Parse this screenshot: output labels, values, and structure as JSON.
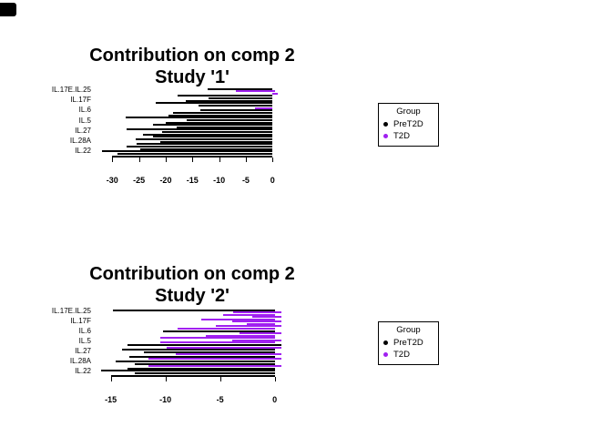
{
  "legend": {
    "title": "Group",
    "items": [
      {
        "label": "PreT2D",
        "color": "#000000"
      },
      {
        "label": "T2D",
        "color": "#A020F0"
      }
    ]
  },
  "chart_data": [
    {
      "type": "bar",
      "orientation": "horizontal",
      "title": "Contribution on comp 2",
      "subtitle": "Study '1'",
      "ylabels": [
        "IL.17E.IL.25",
        "IL.17F",
        "IL.6",
        "IL.5",
        "IL.27",
        "IL.28A",
        "IL.22"
      ],
      "xticks": [
        -30,
        -25,
        -20,
        -15,
        -10,
        -5,
        0
      ],
      "xlim": [
        -32.5,
        1.5
      ],
      "grid": false,
      "legend_position": "right",
      "groups": {
        "PreT2D": "#000000",
        "T2D": "#A020F0"
      },
      "bars": [
        {
          "from": -12.2,
          "to": 0,
          "group": "PreT2D"
        },
        {
          "from": -6.8,
          "to": 0.5,
          "group": "T2D"
        },
        {
          "from": 0,
          "to": 0.9,
          "group": "T2D"
        },
        {
          "from": -17.7,
          "to": 0,
          "group": "PreT2D"
        },
        {
          "from": -12.0,
          "to": 0,
          "group": "PreT2D"
        },
        {
          "from": -16.2,
          "to": 0,
          "group": "PreT2D"
        },
        {
          "from": -21.8,
          "to": 0,
          "group": "PreT2D"
        },
        {
          "from": -13.8,
          "to": 0,
          "group": "PreT2D"
        },
        {
          "from": -3.3,
          "to": 0,
          "group": "T2D"
        },
        {
          "from": -13.5,
          "to": 0,
          "group": "PreT2D"
        },
        {
          "from": -18.6,
          "to": 0,
          "group": "PreT2D"
        },
        {
          "from": -19.4,
          "to": 0,
          "group": "PreT2D"
        },
        {
          "from": -27.5,
          "to": 0,
          "group": "PreT2D"
        },
        {
          "from": -16.0,
          "to": 0,
          "group": "PreT2D"
        },
        {
          "from": -20.0,
          "to": 0,
          "group": "PreT2D"
        },
        {
          "from": -22.3,
          "to": 0,
          "group": "PreT2D"
        },
        {
          "from": -18.0,
          "to": 0,
          "group": "PreT2D"
        },
        {
          "from": -27.4,
          "to": 0,
          "group": "PreT2D"
        },
        {
          "from": -20.6,
          "to": 0,
          "group": "PreT2D"
        },
        {
          "from": -24.3,
          "to": 0,
          "group": "PreT2D"
        },
        {
          "from": -22.3,
          "to": 0,
          "group": "PreT2D"
        },
        {
          "from": -25.7,
          "to": 0,
          "group": "PreT2D"
        },
        {
          "from": -21.1,
          "to": 0,
          "group": "PreT2D"
        },
        {
          "from": -25.4,
          "to": 0,
          "group": "PreT2D"
        },
        {
          "from": -27.4,
          "to": 0,
          "group": "PreT2D"
        },
        {
          "from": -24.8,
          "to": 0,
          "group": "PreT2D"
        },
        {
          "from": -31.9,
          "to": 0,
          "group": "PreT2D"
        },
        {
          "from": -29.1,
          "to": 0,
          "group": "PreT2D"
        }
      ]
    },
    {
      "type": "bar",
      "orientation": "horizontal",
      "title": "Contribution on comp 2",
      "subtitle": "Study '2'",
      "ylabels": [
        "IL.17E.IL.25",
        "IL.17F",
        "IL.6",
        "IL.5",
        "IL.27",
        "IL.28A",
        "IL.22"
      ],
      "xticks": [
        -15,
        -10,
        -5,
        0
      ],
      "xlim": [
        -16.5,
        1.0
      ],
      "grid": false,
      "legend_position": "right",
      "groups": {
        "PreT2D": "#000000",
        "T2D": "#A020F0"
      },
      "bars": [
        {
          "from": -14.8,
          "to": 0,
          "group": "PreT2D"
        },
        {
          "from": -3.8,
          "to": 0.6,
          "group": "T2D"
        },
        {
          "from": -4.7,
          "to": 0,
          "group": "T2D"
        },
        {
          "from": -2.1,
          "to": 0.6,
          "group": "T2D"
        },
        {
          "from": -6.7,
          "to": 0,
          "group": "T2D"
        },
        {
          "from": -3.9,
          "to": 0.6,
          "group": "T2D"
        },
        {
          "from": -2.6,
          "to": 0,
          "group": "T2D"
        },
        {
          "from": -5.4,
          "to": 0.6,
          "group": "T2D"
        },
        {
          "from": -8.9,
          "to": 0,
          "group": "T2D"
        },
        {
          "from": -10.2,
          "to": 0,
          "group": "PreT2D"
        },
        {
          "from": -3.2,
          "to": 0.6,
          "group": "T2D"
        },
        {
          "from": -6.3,
          "to": 0,
          "group": "T2D"
        },
        {
          "from": -10.5,
          "to": 0,
          "group": "T2D"
        },
        {
          "from": -3.9,
          "to": 0.6,
          "group": "T2D"
        },
        {
          "from": -10.5,
          "to": 0,
          "group": "T2D"
        },
        {
          "from": -13.5,
          "to": 0.6,
          "group": "PreT2D"
        },
        {
          "from": -9.9,
          "to": 0.6,
          "group": "T2D"
        },
        {
          "from": -14.0,
          "to": 0,
          "group": "PreT2D"
        },
        {
          "from": -12.0,
          "to": 0,
          "group": "PreT2D"
        },
        {
          "from": -9.1,
          "to": 0.6,
          "group": "T2D"
        },
        {
          "from": -13.3,
          "to": 0,
          "group": "PreT2D"
        },
        {
          "from": -11.6,
          "to": 0.6,
          "group": "T2D"
        },
        {
          "from": -14.6,
          "to": 0,
          "group": "PreT2D"
        },
        {
          "from": -12.8,
          "to": 0,
          "group": "PreT2D"
        },
        {
          "from": -11.6,
          "to": 0.6,
          "group": "T2D"
        },
        {
          "from": -13.5,
          "to": 0,
          "group": "PreT2D"
        },
        {
          "from": -15.9,
          "to": 0,
          "group": "PreT2D"
        },
        {
          "from": -12.8,
          "to": 0,
          "group": "PreT2D"
        }
      ]
    }
  ]
}
